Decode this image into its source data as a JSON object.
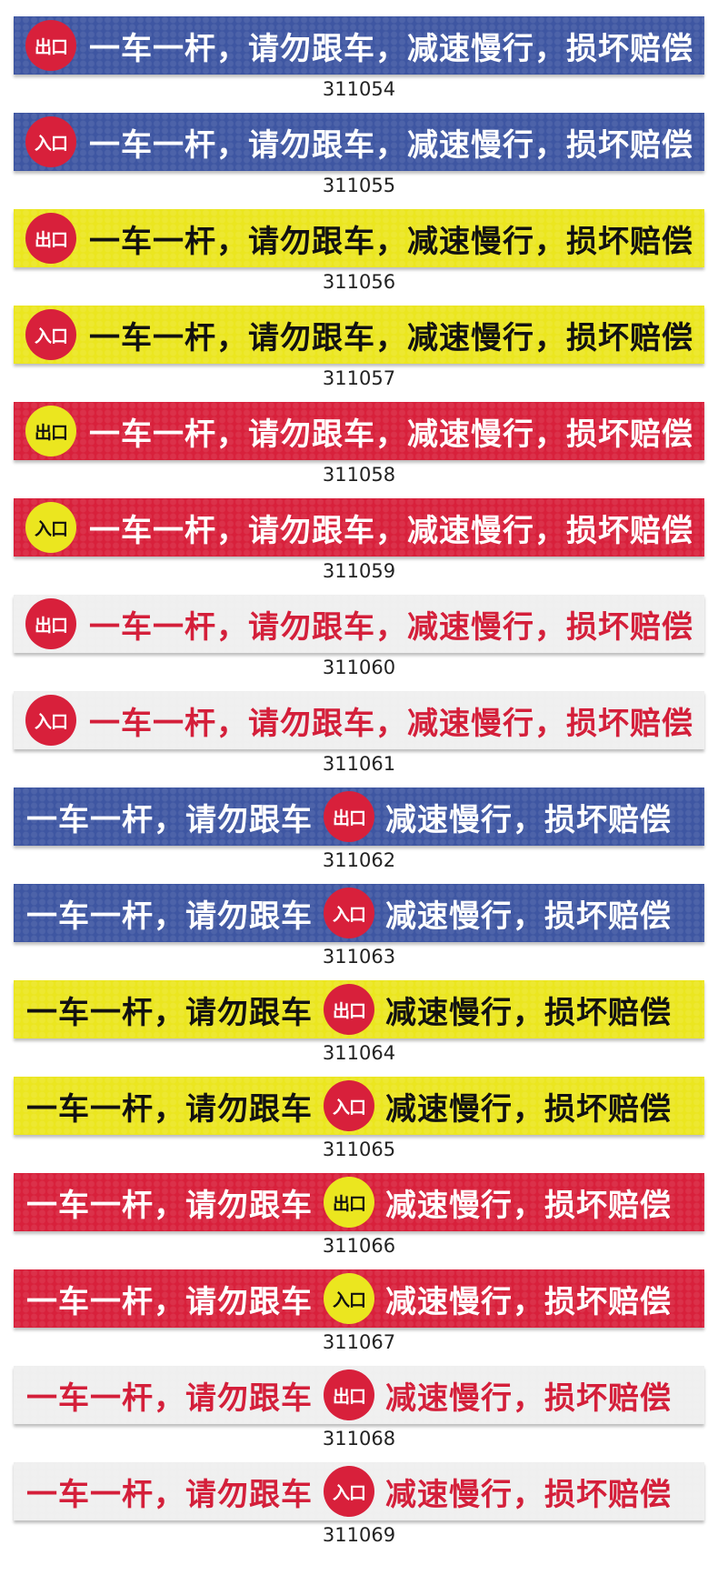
{
  "colors": {
    "blue": "#3e56a2",
    "yellow": "#ebe61f",
    "red": "#d8203b",
    "white": "#efefef",
    "text_red": "#d41f3a",
    "text_white": "#ffffff",
    "text_black": "#111111"
  },
  "text_full": "一车一杆，请勿跟车，减速慢行，损坏赔偿",
  "text_part1": "一车一杆，请勿跟车",
  "text_part2": "减速慢行，损坏赔偿",
  "labels": {
    "exit": "出口",
    "entry": "入口"
  },
  "items": [
    {
      "code": "311054",
      "layout": "A",
      "bg": "blue",
      "badge": "exit",
      "badge_bg": "red",
      "badge_fg": "text_white",
      "fg": "text_white"
    },
    {
      "code": "311055",
      "layout": "A",
      "bg": "blue",
      "badge": "entry",
      "badge_bg": "red",
      "badge_fg": "text_white",
      "fg": "text_white"
    },
    {
      "code": "311056",
      "layout": "A",
      "bg": "yellow",
      "badge": "exit",
      "badge_bg": "red",
      "badge_fg": "text_white",
      "fg": "text_black"
    },
    {
      "code": "311057",
      "layout": "A",
      "bg": "yellow",
      "badge": "entry",
      "badge_bg": "red",
      "badge_fg": "text_white",
      "fg": "text_black"
    },
    {
      "code": "311058",
      "layout": "A",
      "bg": "red",
      "badge": "exit",
      "badge_bg": "yellow",
      "badge_fg": "text_black",
      "fg": "text_white"
    },
    {
      "code": "311059",
      "layout": "A",
      "bg": "red",
      "badge": "entry",
      "badge_bg": "yellow",
      "badge_fg": "text_black",
      "fg": "text_white"
    },
    {
      "code": "311060",
      "layout": "A",
      "bg": "white",
      "badge": "exit",
      "badge_bg": "red",
      "badge_fg": "text_white",
      "fg": "text_red"
    },
    {
      "code": "311061",
      "layout": "A",
      "bg": "white",
      "badge": "entry",
      "badge_bg": "red",
      "badge_fg": "text_white",
      "fg": "text_red"
    },
    {
      "code": "311062",
      "layout": "B",
      "bg": "blue",
      "badge": "exit",
      "badge_bg": "red",
      "badge_fg": "text_white",
      "fg": "text_white"
    },
    {
      "code": "311063",
      "layout": "B",
      "bg": "blue",
      "badge": "entry",
      "badge_bg": "red",
      "badge_fg": "text_white",
      "fg": "text_white"
    },
    {
      "code": "311064",
      "layout": "B",
      "bg": "yellow",
      "badge": "exit",
      "badge_bg": "red",
      "badge_fg": "text_white",
      "fg": "text_black"
    },
    {
      "code": "311065",
      "layout": "B",
      "bg": "yellow",
      "badge": "entry",
      "badge_bg": "red",
      "badge_fg": "text_white",
      "fg": "text_black"
    },
    {
      "code": "311066",
      "layout": "B",
      "bg": "red",
      "badge": "exit",
      "badge_bg": "yellow",
      "badge_fg": "text_black",
      "fg": "text_white"
    },
    {
      "code": "311067",
      "layout": "B",
      "bg": "red",
      "badge": "entry",
      "badge_bg": "yellow",
      "badge_fg": "text_black",
      "fg": "text_white"
    },
    {
      "code": "311068",
      "layout": "B",
      "bg": "white",
      "badge": "exit",
      "badge_bg": "red",
      "badge_fg": "text_white",
      "fg": "text_red"
    },
    {
      "code": "311069",
      "layout": "B",
      "bg": "white",
      "badge": "entry",
      "badge_bg": "red",
      "badge_fg": "text_white",
      "fg": "text_red"
    }
  ]
}
